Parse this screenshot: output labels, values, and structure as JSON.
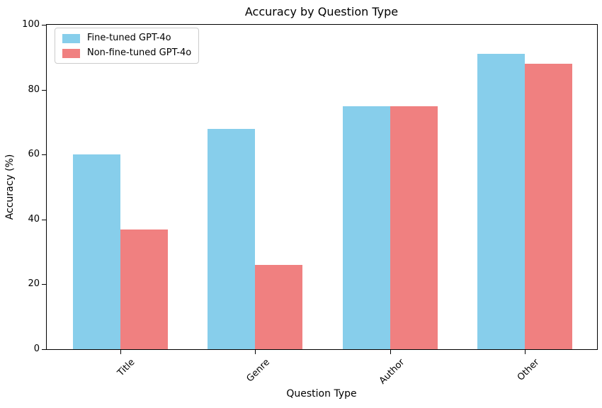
{
  "chart_data": {
    "type": "bar",
    "title": "Accuracy by Question Type",
    "xlabel": "Question Type",
    "ylabel": "Accuracy (%)",
    "categories": [
      "Title",
      "Genre",
      "Author",
      "Other"
    ],
    "series": [
      {
        "name": "Fine-tuned GPT-4o",
        "color": "#87CEEB",
        "values": [
          60,
          68,
          75,
          91
        ]
      },
      {
        "name": "Non-fine-tuned GPT-4o",
        "color": "#F08080",
        "values": [
          37,
          26,
          75,
          88
        ]
      }
    ],
    "ylim": [
      0,
      100
    ],
    "yticks": [
      0,
      20,
      40,
      60,
      80,
      100
    ],
    "grid": false,
    "legend_position": "upper left",
    "x_tick_rotation": 45,
    "background_color": "#FFFFFF",
    "axis_color": "#000000",
    "legend_border_color": "#CCCCCC"
  }
}
